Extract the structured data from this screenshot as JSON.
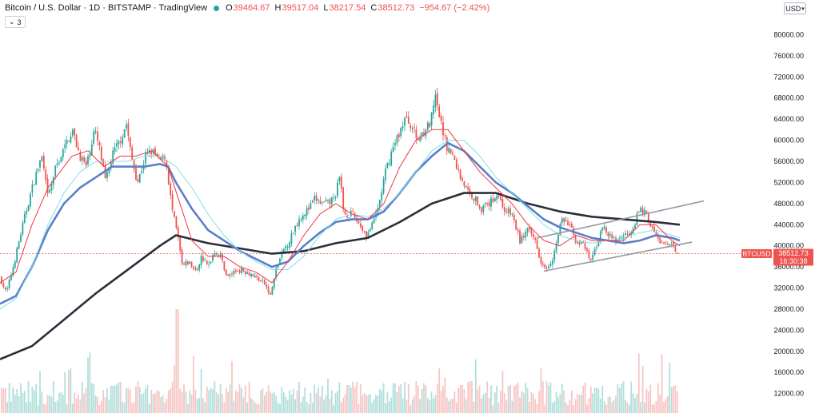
{
  "header": {
    "title": "Bitcoin / U.S. Dollar · 1D · BITSTAMP · TradingView",
    "open_label": "O",
    "open": "39464.67",
    "high_label": "H",
    "high": "39517.04",
    "low_label": "L",
    "low": "38217.54",
    "close_label": "C",
    "close": "38512.73",
    "change": "−954.67 (−2.42%)",
    "indicators_count": "3",
    "currency": "USD"
  },
  "price_tag": {
    "symbol": "BTCUSD",
    "price": "38512.73",
    "countdown": "16:30:38"
  },
  "colors": {
    "up": "#26a69a",
    "down": "#ef5350",
    "ma_fast": "#f23645",
    "ma_cyan": "#80deea",
    "ma_mid": "#5b7fc7",
    "ma_slow": "#2a2e39",
    "channel": "#9598a1",
    "volume_down": "#f7c6c5",
    "volume_up": "#b2dfdb"
  },
  "chart_data": {
    "type": "candlestick",
    "y_axis_ticks": [
      "80000.00",
      "76000.00",
      "72000.00",
      "68000.00",
      "64000.00",
      "60000.00",
      "56000.00",
      "52000.00",
      "48000.00",
      "44000.00",
      "40000.00",
      "36000.00",
      "32000.00",
      "28000.00",
      "24000.00",
      "20000.00",
      "16000.00",
      "12000.00"
    ],
    "ylim": [
      10000,
      82000
    ],
    "last_price": 38512.73,
    "price_waypoints": [
      [
        0,
        34000
      ],
      [
        8,
        31000
      ],
      [
        18,
        37000
      ],
      [
        30,
        45000
      ],
      [
        42,
        52000
      ],
      [
        52,
        57000
      ],
      [
        60,
        49000
      ],
      [
        70,
        55000
      ],
      [
        82,
        59000
      ],
      [
        90,
        62000
      ],
      [
        100,
        57000
      ],
      [
        108,
        55000
      ],
      [
        118,
        62000
      ],
      [
        125,
        58000
      ],
      [
        132,
        52000
      ],
      [
        140,
        57000
      ],
      [
        150,
        60000
      ],
      [
        158,
        63000
      ],
      [
        164,
        57000
      ],
      [
        172,
        52000
      ],
      [
        182,
        57000
      ],
      [
        190,
        58000
      ],
      [
        200,
        56000
      ],
      [
        207,
        57000
      ],
      [
        215,
        47000
      ],
      [
        222,
        42000
      ],
      [
        228,
        36000
      ],
      [
        236,
        37000
      ],
      [
        245,
        35000
      ],
      [
        252,
        38000
      ],
      [
        260,
        36000
      ],
      [
        268,
        39000
      ],
      [
        276,
        38000
      ],
      [
        284,
        34000
      ],
      [
        292,
        35000
      ],
      [
        300,
        35500
      ],
      [
        310,
        35000
      ],
      [
        320,
        34000
      ],
      [
        330,
        33000
      ],
      [
        338,
        30500
      ],
      [
        346,
        36000
      ],
      [
        354,
        39000
      ],
      [
        362,
        41000
      ],
      [
        370,
        44000
      ],
      [
        378,
        46000
      ],
      [
        386,
        47000
      ],
      [
        394,
        49000
      ],
      [
        402,
        48000
      ],
      [
        410,
        48000
      ],
      [
        418,
        49000
      ],
      [
        425,
        53000
      ],
      [
        430,
        46000
      ],
      [
        440,
        46000
      ],
      [
        450,
        44000
      ],
      [
        458,
        42000
      ],
      [
        466,
        44000
      ],
      [
        474,
        48000
      ],
      [
        482,
        54000
      ],
      [
        490,
        58000
      ],
      [
        498,
        61000
      ],
      [
        506,
        64000
      ],
      [
        514,
        63000
      ],
      [
        522,
        60000
      ],
      [
        530,
        62000
      ],
      [
        538,
        63000
      ],
      [
        544,
        68000
      ],
      [
        550,
        64000
      ],
      [
        558,
        59000
      ],
      [
        566,
        57000
      ],
      [
        576,
        53000
      ],
      [
        586,
        50000
      ],
      [
        594,
        49000
      ],
      [
        602,
        47000
      ],
      [
        612,
        48000
      ],
      [
        622,
        50000
      ],
      [
        630,
        47000
      ],
      [
        640,
        46000
      ],
      [
        650,
        41000
      ],
      [
        660,
        43000
      ],
      [
        670,
        41000
      ],
      [
        676,
        37000
      ],
      [
        684,
        36000
      ],
      [
        692,
        38000
      ],
      [
        702,
        45000
      ],
      [
        712,
        44000
      ],
      [
        720,
        41000
      ],
      [
        730,
        40000
      ],
      [
        738,
        37000
      ],
      [
        746,
        40000
      ],
      [
        752,
        44000
      ],
      [
        760,
        42000
      ],
      [
        770,
        41000
      ],
      [
        780,
        42000
      ],
      [
        790,
        43000
      ],
      [
        800,
        47000
      ],
      [
        808,
        46000
      ],
      [
        816,
        43000
      ],
      [
        824,
        41000
      ],
      [
        832,
        40000
      ],
      [
        840,
        40000
      ],
      [
        850,
        38513
      ]
    ],
    "channel_upper": [
      [
        672,
        41500
      ],
      [
        880,
        48500
      ]
    ],
    "channel_lower": [
      [
        680,
        35200
      ],
      [
        865,
        40700
      ]
    ],
    "ma_fast_waypoints": [
      [
        0,
        33000
      ],
      [
        20,
        35000
      ],
      [
        40,
        44000
      ],
      [
        60,
        51000
      ],
      [
        90,
        57000
      ],
      [
        110,
        58000
      ],
      [
        130,
        55000
      ],
      [
        150,
        57000
      ],
      [
        170,
        57000
      ],
      [
        190,
        58000
      ],
      [
        210,
        55000
      ],
      [
        225,
        48000
      ],
      [
        240,
        41000
      ],
      [
        260,
        38000
      ],
      [
        280,
        38000
      ],
      [
        300,
        36000
      ],
      [
        320,
        35000
      ],
      [
        340,
        33000
      ],
      [
        360,
        37000
      ],
      [
        380,
        42000
      ],
      [
        400,
        46000
      ],
      [
        420,
        48000
      ],
      [
        440,
        46000
      ],
      [
        460,
        45000
      ],
      [
        480,
        48000
      ],
      [
        500,
        55000
      ],
      [
        520,
        60000
      ],
      [
        540,
        62000
      ],
      [
        560,
        62000
      ],
      [
        580,
        58000
      ],
      [
        600,
        54000
      ],
      [
        620,
        51000
      ],
      [
        640,
        48000
      ],
      [
        660,
        44000
      ],
      [
        680,
        41000
      ],
      [
        700,
        40000
      ],
      [
        720,
        42000
      ],
      [
        740,
        41000
      ],
      [
        760,
        41000
      ],
      [
        780,
        41000
      ],
      [
        800,
        44000
      ],
      [
        820,
        44000
      ],
      [
        840,
        41000
      ],
      [
        850,
        40000
      ]
    ],
    "ma_cyan_waypoints": [
      [
        0,
        28000
      ],
      [
        20,
        30000
      ],
      [
        40,
        36000
      ],
      [
        60,
        44000
      ],
      [
        80,
        50000
      ],
      [
        100,
        54000
      ],
      [
        120,
        56000
      ],
      [
        140,
        56000
      ],
      [
        160,
        56000
      ],
      [
        180,
        57000
      ],
      [
        200,
        57000
      ],
      [
        220,
        55000
      ],
      [
        240,
        51000
      ],
      [
        260,
        46000
      ],
      [
        280,
        42000
      ],
      [
        300,
        39000
      ],
      [
        320,
        37000
      ],
      [
        340,
        35500
      ],
      [
        360,
        35500
      ],
      [
        380,
        38000
      ],
      [
        400,
        42000
      ],
      [
        420,
        45000
      ],
      [
        440,
        46000
      ],
      [
        460,
        45500
      ],
      [
        480,
        47000
      ],
      [
        500,
        50000
      ],
      [
        520,
        54000
      ],
      [
        540,
        58000
      ],
      [
        560,
        60000
      ],
      [
        580,
        60000
      ],
      [
        600,
        57000
      ],
      [
        620,
        53000
      ],
      [
        640,
        50000
      ],
      [
        660,
        47000
      ],
      [
        680,
        44000
      ],
      [
        700,
        42000
      ],
      [
        720,
        41000
      ],
      [
        740,
        40500
      ],
      [
        760,
        41000
      ],
      [
        780,
        41500
      ],
      [
        800,
        42500
      ],
      [
        820,
        43000
      ],
      [
        840,
        42000
      ],
      [
        850,
        41500
      ]
    ],
    "ma_mid_waypoints": [
      [
        0,
        29000
      ],
      [
        20,
        30500
      ],
      [
        40,
        36000
      ],
      [
        60,
        43000
      ],
      [
        80,
        48000
      ],
      [
        100,
        51000
      ],
      [
        120,
        53000
      ],
      [
        140,
        55000
      ],
      [
        160,
        55000
      ],
      [
        180,
        55000
      ],
      [
        200,
        55500
      ],
      [
        210,
        55000
      ],
      [
        220,
        52000
      ],
      [
        240,
        47000
      ],
      [
        260,
        43000
      ],
      [
        280,
        41000
      ],
      [
        300,
        39000
      ],
      [
        320,
        37500
      ],
      [
        340,
        36000
      ],
      [
        360,
        37000
      ],
      [
        380,
        40000
      ],
      [
        400,
        42500
      ],
      [
        420,
        44500
      ],
      [
        440,
        45000
      ],
      [
        460,
        45000
      ],
      [
        480,
        46500
      ],
      [
        500,
        50000
      ],
      [
        520,
        54000
      ],
      [
        540,
        57000
      ],
      [
        560,
        59500
      ],
      [
        580,
        58000
      ],
      [
        600,
        55000
      ],
      [
        620,
        52000
      ],
      [
        640,
        50000
      ],
      [
        660,
        47500
      ],
      [
        680,
        45000
      ],
      [
        700,
        43500
      ],
      [
        720,
        42500
      ],
      [
        740,
        41500
      ],
      [
        760,
        41000
      ],
      [
        780,
        40500
      ],
      [
        800,
        41000
      ],
      [
        820,
        42000
      ],
      [
        840,
        41500
      ],
      [
        850,
        41000
      ]
    ],
    "ma_slow_waypoints": [
      [
        0,
        18500
      ],
      [
        40,
        21000
      ],
      [
        80,
        26000
      ],
      [
        120,
        31000
      ],
      [
        160,
        35500
      ],
      [
        200,
        40000
      ],
      [
        220,
        42000
      ],
      [
        260,
        40500
      ],
      [
        300,
        39500
      ],
      [
        340,
        38500
      ],
      [
        380,
        39000
      ],
      [
        420,
        40500
      ],
      [
        460,
        41500
      ],
      [
        500,
        44500
      ],
      [
        540,
        48000
      ],
      [
        580,
        50000
      ],
      [
        620,
        50000
      ],
      [
        660,
        48000
      ],
      [
        700,
        46500
      ],
      [
        740,
        45500
      ],
      [
        780,
        45000
      ],
      [
        820,
        44500
      ],
      [
        850,
        44000
      ]
    ]
  }
}
